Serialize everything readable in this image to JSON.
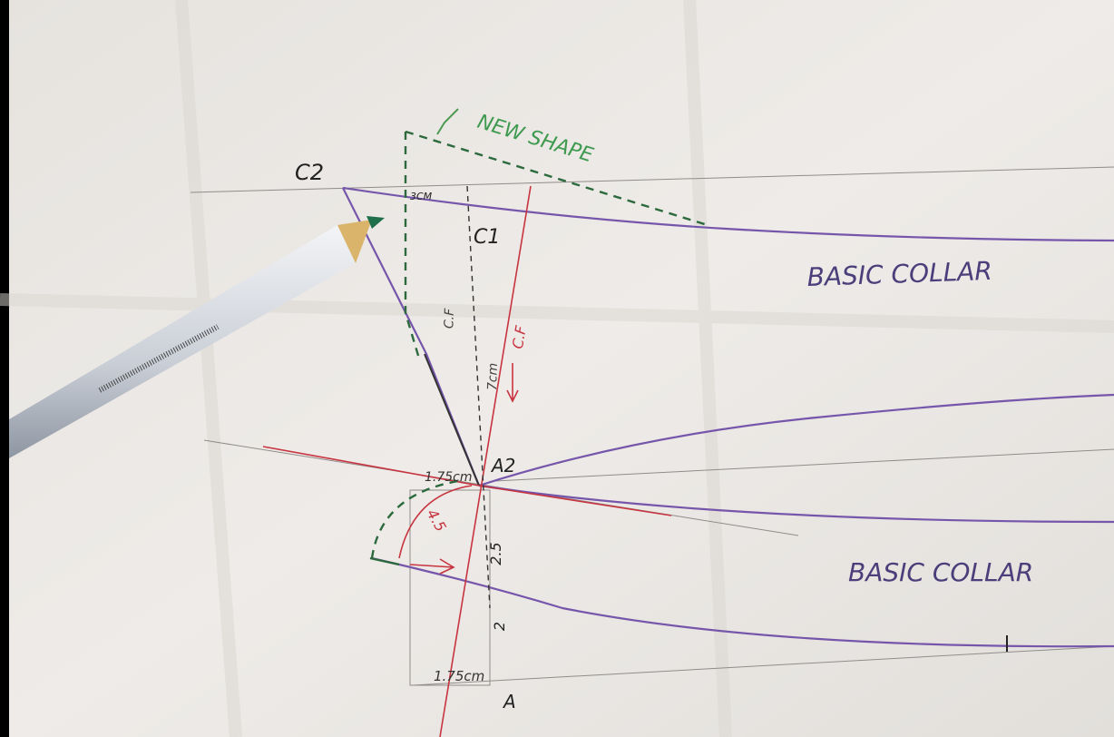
{
  "labels": {
    "new_shape": "NEW SHAPE",
    "c2": "C2",
    "c1": "C1",
    "three_cm": "3CM",
    "cf_black": "C.F",
    "seven_cm": "7cm",
    "cf_red": "C.F",
    "basic_collar_top": "BASIC COLLAR",
    "a2": "A2",
    "top_175": "1.75cm",
    "four_five": "4.5",
    "two_five": "2.5",
    "two": "2",
    "bottom_175": "1.75cm",
    "a": "A",
    "basic_collar_bottom": "BASIC COLLAR"
  }
}
